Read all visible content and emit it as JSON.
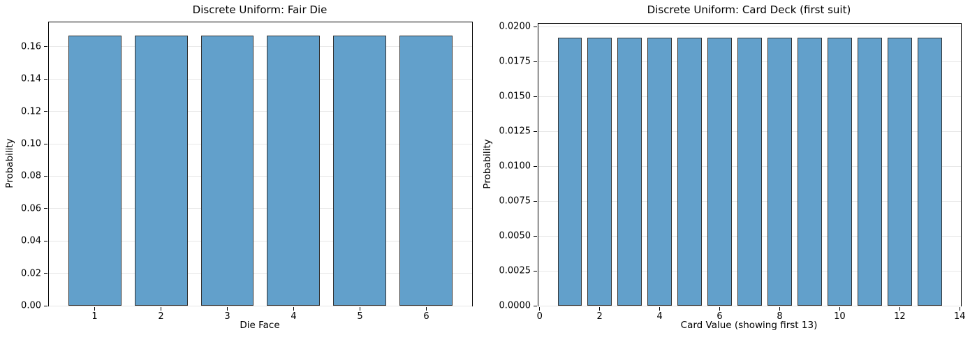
{
  "figure": {
    "background": "#ffffff",
    "bar_fill": "#62a0cb",
    "bar_edge": "#333333",
    "grid_color": "#e7e7e7"
  },
  "chart_data": [
    {
      "type": "bar",
      "title": "Discrete Uniform: Fair Die",
      "xlabel": "Die Face",
      "ylabel": "Probability",
      "x": [
        1,
        2,
        3,
        4,
        5,
        6
      ],
      "values": [
        0.1667,
        0.1667,
        0.1667,
        0.1667,
        0.1667,
        0.1667
      ],
      "bar_width": 0.8,
      "xlim": [
        0.31,
        6.69
      ],
      "ylim": [
        0,
        0.175
      ],
      "grid": "y",
      "legend": "none",
      "xtick_values": [
        1,
        2,
        3,
        4,
        5,
        6
      ],
      "xtick_labels": [
        "1",
        "2",
        "3",
        "4",
        "5",
        "6"
      ],
      "ytick_values": [
        0.0,
        0.02,
        0.04,
        0.06,
        0.08,
        0.1,
        0.12,
        0.14,
        0.16
      ],
      "ytick_labels": [
        "0.00",
        "0.02",
        "0.04",
        "0.06",
        "0.08",
        "0.10",
        "0.12",
        "0.14",
        "0.16"
      ]
    },
    {
      "type": "bar",
      "title": "Discrete Uniform: Card Deck (first suit)",
      "xlabel": "Card Value (showing first 13)",
      "ylabel": "Probability",
      "x": [
        1,
        2,
        3,
        4,
        5,
        6,
        7,
        8,
        9,
        10,
        11,
        12,
        13
      ],
      "values": [
        0.0192,
        0.0192,
        0.0192,
        0.0192,
        0.0192,
        0.0192,
        0.0192,
        0.0192,
        0.0192,
        0.0192,
        0.0192,
        0.0192,
        0.0192
      ],
      "bar_width": 0.8,
      "xlim": [
        -0.04,
        14.04
      ],
      "ylim": [
        0,
        0.0202
      ],
      "grid": "y",
      "legend": "none",
      "xtick_values": [
        0,
        2,
        4,
        6,
        8,
        10,
        12,
        14
      ],
      "xtick_labels": [
        "0",
        "2",
        "4",
        "6",
        "8",
        "10",
        "12",
        "14"
      ],
      "ytick_values": [
        0.0,
        0.0025,
        0.005,
        0.0075,
        0.01,
        0.0125,
        0.015,
        0.0175,
        0.02
      ],
      "ytick_labels": [
        "0.0000",
        "0.0025",
        "0.0050",
        "0.0075",
        "0.0100",
        "0.0125",
        "0.0150",
        "0.0175",
        "0.0200"
      ]
    }
  ]
}
